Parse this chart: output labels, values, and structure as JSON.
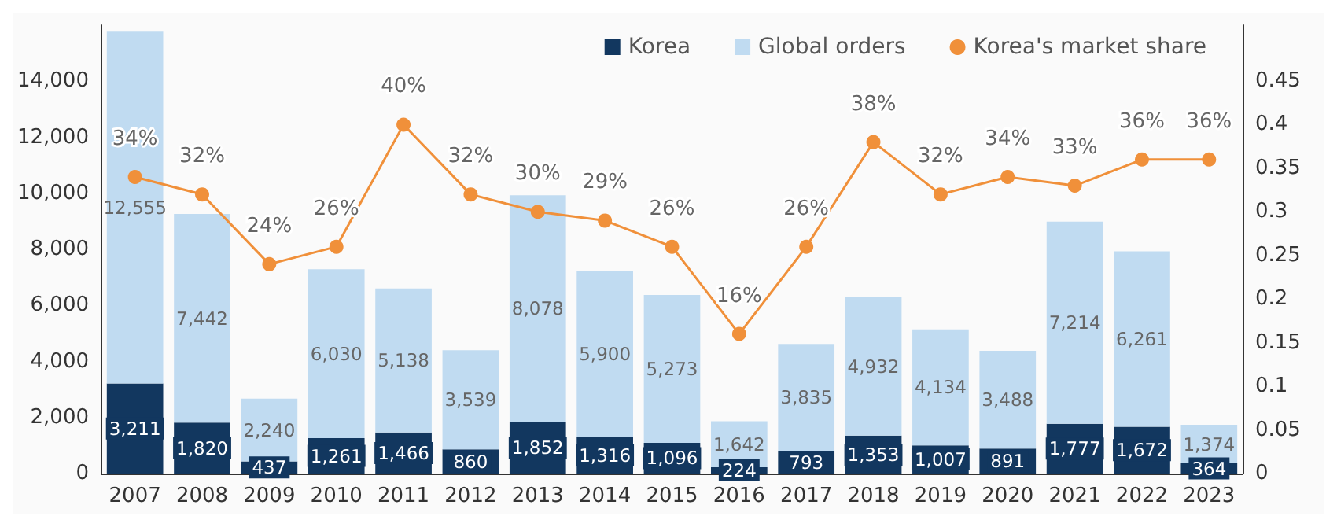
{
  "chart_data": {
    "type": "bar",
    "stacked": true,
    "legend": "top right",
    "grid": false,
    "categories": [
      "2007",
      "2008",
      "2009",
      "2010",
      "2011",
      "2012",
      "2013",
      "2014",
      "2015",
      "2016",
      "2017",
      "2018",
      "2019",
      "2020",
      "2021",
      "2022",
      "2023"
    ],
    "ylim": [
      0,
      16000
    ],
    "yticks": [
      {
        "value": 0,
        "label": "0"
      },
      {
        "value": 2000,
        "label": "2,000"
      },
      {
        "value": 4000,
        "label": "4,000"
      },
      {
        "value": 6000,
        "label": "6,000"
      },
      {
        "value": 8000,
        "label": "8,000"
      },
      {
        "value": 10000,
        "label": "10,000"
      },
      {
        "value": 12000,
        "label": "12,000"
      },
      {
        "value": 14000,
        "label": "14,000"
      }
    ],
    "y2lim": [
      0,
      0.514
    ],
    "y2ticks": [
      0,
      0.05,
      0.1,
      0.15,
      0.2,
      0.25,
      0.3,
      0.35,
      0.4,
      0.45
    ],
    "series": [
      {
        "name": "Korea",
        "color": "#12375f",
        "values": [
          3211,
          1820,
          437,
          1261,
          1466,
          860,
          1852,
          1316,
          1096,
          224,
          793,
          1353,
          1007,
          891,
          1777,
          1672,
          364
        ],
        "value_labels": [
          "3,211",
          "1,820",
          "437",
          "1,261",
          "1,466",
          "860",
          "1,852",
          "1,316",
          "1,096",
          "224",
          "793",
          "1,353",
          "1,007",
          "891",
          "1,777",
          "1,672",
          "364"
        ]
      },
      {
        "name": "Global orders",
        "color": "#c0dbf1",
        "values": [
          12555,
          7442,
          2240,
          6030,
          5138,
          3539,
          8078,
          5900,
          5273,
          1642,
          3835,
          4932,
          4134,
          3488,
          7214,
          6261,
          1374
        ],
        "value_labels": [
          "12,555",
          "7,442",
          "2,240",
          "6,030",
          "5,138",
          "3,539",
          "8,078",
          "5,900",
          "5,273",
          "1,642",
          "3,835",
          "4,932",
          "4,134",
          "3,488",
          "7,214",
          "6,261",
          "1,374"
        ]
      },
      {
        "name": "Korea's market share",
        "type": "line",
        "axis": "y2",
        "color": "#f0903a",
        "marker": "circle",
        "line_style": "solid",
        "values": [
          0.34,
          0.32,
          0.24,
          0.26,
          0.4,
          0.32,
          0.3,
          0.29,
          0.26,
          0.16,
          0.26,
          0.38,
          0.32,
          0.34,
          0.33,
          0.36,
          0.36
        ],
        "value_labels": [
          "34%",
          "32%",
          "24%",
          "26%",
          "40%",
          "32%",
          "30%",
          "29%",
          "26%",
          "16%",
          "26%",
          "38%",
          "32%",
          "34%",
          "33%",
          "36%",
          "36%"
        ]
      }
    ]
  }
}
